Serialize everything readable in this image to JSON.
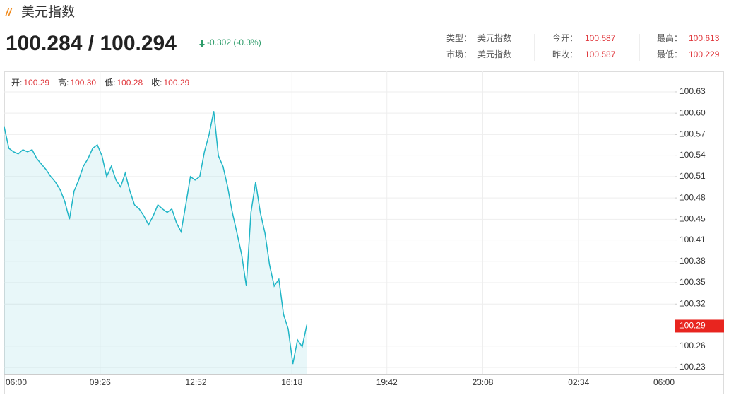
{
  "header": {
    "title": "美元指数",
    "price": "100.284 / 100.294",
    "change": "-0.302 (-0.3%)",
    "info": [
      [
        {
          "label": "类型：",
          "value": "美元指数"
        },
        {
          "label": "今开：",
          "value": "100.587"
        },
        {
          "label": "最高：",
          "value": "100.613"
        }
      ],
      [
        {
          "label": "市场：",
          "value": "美元指数"
        },
        {
          "label": "昨收：",
          "value": "100.587"
        },
        {
          "label": "最低：",
          "value": "100.229"
        }
      ]
    ],
    "ohlc": [
      {
        "label": "开:",
        "value": "100.29"
      },
      {
        "label": "高:",
        "value": "100.30"
      },
      {
        "label": "低:",
        "value": "100.28"
      },
      {
        "label": "收:",
        "value": "100.29"
      }
    ]
  },
  "chart_data": {
    "type": "area",
    "x": [
      "06:00",
      "06:10",
      "06:20",
      "06:30",
      "06:40",
      "06:50",
      "07:00",
      "07:10",
      "07:20",
      "07:30",
      "07:40",
      "07:50",
      "08:00",
      "08:10",
      "08:20",
      "08:30",
      "08:40",
      "08:50",
      "09:00",
      "09:10",
      "09:20",
      "09:30",
      "09:40",
      "09:50",
      "10:00",
      "10:10",
      "10:20",
      "10:30",
      "10:40",
      "10:50",
      "11:00",
      "11:10",
      "11:20",
      "11:30",
      "11:40",
      "11:50",
      "12:00",
      "12:10",
      "12:20",
      "12:30",
      "12:40",
      "12:50",
      "13:00",
      "13:10",
      "13:20",
      "13:30",
      "13:40",
      "13:50",
      "14:00",
      "14:10",
      "14:20",
      "14:30",
      "14:40",
      "14:50",
      "15:00",
      "15:10",
      "15:20",
      "15:30",
      "15:40",
      "15:50",
      "16:00",
      "16:10",
      "16:20",
      "16:30",
      "16:40",
      "16:50"
    ],
    "series": [
      {
        "name": "美元指数",
        "color": "#1fb5c6",
        "values": [
          100.579,
          100.548,
          100.543,
          100.54,
          100.546,
          100.543,
          100.546,
          100.533,
          100.525,
          100.517,
          100.507,
          100.499,
          100.488,
          100.471,
          100.445,
          100.486,
          100.502,
          100.522,
          100.533,
          100.548,
          100.553,
          100.537,
          100.507,
          100.522,
          100.502,
          100.492,
          100.512,
          100.486,
          100.466,
          100.46,
          100.45,
          100.437,
          100.45,
          100.466,
          100.46,
          100.455,
          100.46,
          100.44,
          100.427,
          100.466,
          100.507,
          100.502,
          100.507,
          100.543,
          100.568,
          100.602,
          100.537,
          100.522,
          100.492,
          100.455,
          100.425,
          100.394,
          100.348,
          100.455,
          100.499,
          100.455,
          100.425,
          100.379,
          100.348,
          100.358,
          100.307,
          100.286,
          100.235,
          100.27,
          100.26,
          100.292
        ]
      }
    ],
    "last": 100.29,
    "ylim": [
      100.2197,
      100.6597
    ],
    "yticks": [
      100.63,
      {
        "value": 100.599,
        "label": "100.60"
      },
      {
        "value": 100.568,
        "label": "100.57"
      },
      {
        "value": 100.538,
        "label": "100.54"
      },
      {
        "value": 100.507,
        "label": "100.51"
      },
      {
        "value": 100.476,
        "label": "100.48"
      },
      {
        "value": 100.445,
        "label": "100.45"
      },
      {
        "value": 100.415,
        "label": "100.41"
      },
      {
        "value": 100.384,
        "label": "100.38"
      },
      {
        "value": 100.353,
        "label": "100.35"
      },
      {
        "value": 100.322,
        "label": "100.32"
      },
      {
        "value": 100.261,
        "label": "100.26"
      },
      100.23
    ],
    "xticks": [
      "06:00",
      "09:26",
      "12:52",
      "16:18",
      "19:42",
      "23:08",
      "02:34",
      "06:00"
    ],
    "grid": true
  }
}
